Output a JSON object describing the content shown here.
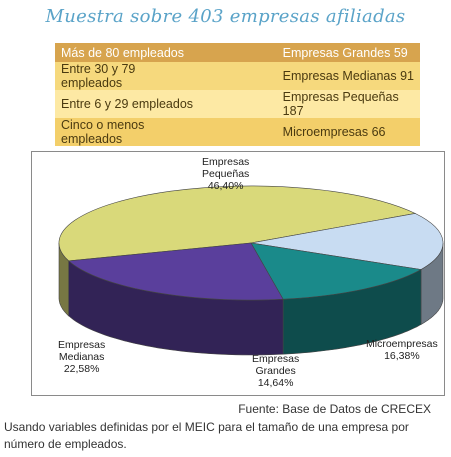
{
  "title": "Muestra sobre 403 empresas afiliadas",
  "table": {
    "rows": [
      {
        "range": "Más de 80 empleados",
        "category": "Empresas Grandes 59"
      },
      {
        "range": "Entre 30 y 79 empleados",
        "category": "Empresas Medianas 91"
      },
      {
        "range": "Entre 6 y 29 empleados",
        "category": "Empresas Pequeñas 187"
      },
      {
        "range": "Cinco o menos empleados",
        "category": "Microempresas 66"
      }
    ]
  },
  "colors": {
    "pequenas": "#d9d97a",
    "medianas": "#5a3f9c",
    "grandes": "#1a8a8a",
    "micro": "#c8dcf2",
    "title": "#5aa3c8"
  },
  "chart_data": {
    "type": "pie",
    "style": "3d",
    "slices": [
      {
        "name_lines": [
          "Empresas",
          "Pequeñas"
        ],
        "value": 46.4,
        "label": "46,40%"
      },
      {
        "name_lines": [
          "Microempresas"
        ],
        "value": 16.38,
        "label": "16,38%"
      },
      {
        "name_lines": [
          "Empresas",
          "Grandes"
        ],
        "value": 14.64,
        "label": "14,64%"
      },
      {
        "name_lines": [
          "Empresas",
          "Medianas"
        ],
        "value": 22.58,
        "label": "22,58%"
      }
    ]
  },
  "source": "Fuente: Base de Datos de CRECEX",
  "note": "Usando variables definidas por el MEIC para el tamaño de una empresa por número de empleados."
}
